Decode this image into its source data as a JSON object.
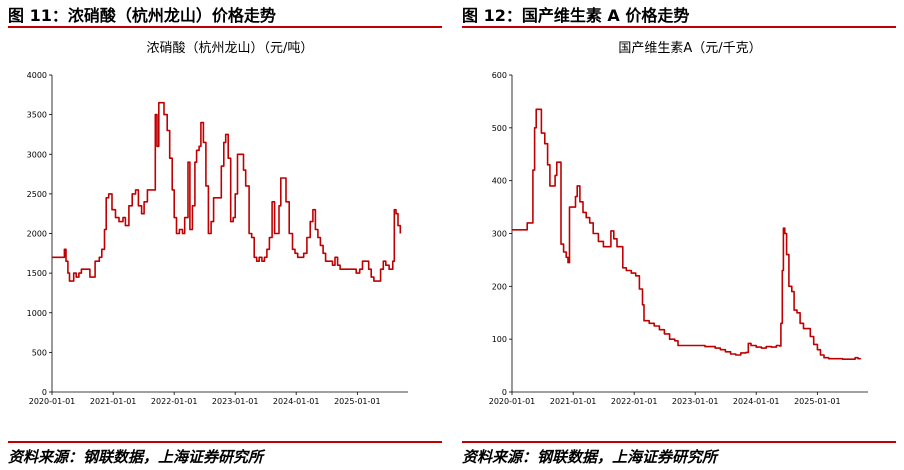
{
  "panels": [
    {
      "fig_title": "图 11：浓硝酸（杭州龙山）价格走势",
      "source": "资料来源：钢联数据，上海证券研究所"
    },
    {
      "fig_title": "图 12：国产维生素 A 价格走势",
      "source": "资料来源：钢联数据，上海证券研究所"
    }
  ],
  "chart_data": [
    {
      "type": "line",
      "title": "浓硝酸（杭州龙山）（元/吨）",
      "x_range": [
        "2020-01-01",
        "2025-10-31"
      ],
      "ylim": [
        0,
        4000
      ],
      "yticks": [
        "0",
        "500",
        "1000",
        "1500",
        "2000",
        "2500",
        "3000",
        "3500",
        "4000"
      ],
      "xticks": [
        "2020-01-01",
        "2021-01-01",
        "2022-01-01",
        "2023-01-01",
        "2024-01-01",
        "2025-01-01"
      ],
      "grid": false,
      "series": [
        {
          "color": "#c00000",
          "points": [
            [
              "2020-01-01",
              1700
            ],
            [
              "2020-03-10",
              1700
            ],
            [
              "2020-03-15",
              1800
            ],
            [
              "2020-03-25",
              1650
            ],
            [
              "2020-04-05",
              1500
            ],
            [
              "2020-04-15",
              1400
            ],
            [
              "2020-05-01",
              1400
            ],
            [
              "2020-05-10",
              1500
            ],
            [
              "2020-05-25",
              1450
            ],
            [
              "2020-06-10",
              1500
            ],
            [
              "2020-06-25",
              1550
            ],
            [
              "2020-08-05",
              1550
            ],
            [
              "2020-08-15",
              1450
            ],
            [
              "2020-09-01",
              1450
            ],
            [
              "2020-09-15",
              1650
            ],
            [
              "2020-10-10",
              1700
            ],
            [
              "2020-10-25",
              1800
            ],
            [
              "2020-11-10",
              2050
            ],
            [
              "2020-11-20",
              2450
            ],
            [
              "2020-12-05",
              2500
            ],
            [
              "2020-12-25",
              2300
            ],
            [
              "2021-01-15",
              2200
            ],
            [
              "2021-02-05",
              2150
            ],
            [
              "2021-03-01",
              2200
            ],
            [
              "2021-03-15",
              2100
            ],
            [
              "2021-04-05",
              2350
            ],
            [
              "2021-04-25",
              2500
            ],
            [
              "2021-05-15",
              2550
            ],
            [
              "2021-06-01",
              2350
            ],
            [
              "2021-06-20",
              2250
            ],
            [
              "2021-07-05",
              2400
            ],
            [
              "2021-07-25",
              2550
            ],
            [
              "2021-09-01",
              2550
            ],
            [
              "2021-09-10",
              3500
            ],
            [
              "2021-09-20",
              3100
            ],
            [
              "2021-10-01",
              3650
            ],
            [
              "2021-10-20",
              3650
            ],
            [
              "2021-11-01",
              3500
            ],
            [
              "2021-11-20",
              3300
            ],
            [
              "2021-12-05",
              2950
            ],
            [
              "2021-12-20",
              2550
            ],
            [
              "2022-01-01",
              2200
            ],
            [
              "2022-01-15",
              2000
            ],
            [
              "2022-02-01",
              2050
            ],
            [
              "2022-02-20",
              2000
            ],
            [
              "2022-03-05",
              2200
            ],
            [
              "2022-03-15",
              2200
            ],
            [
              "2022-03-25",
              2900
            ],
            [
              "2022-04-05",
              2050
            ],
            [
              "2022-04-20",
              2350
            ],
            [
              "2022-05-05",
              2900
            ],
            [
              "2022-05-15",
              3050
            ],
            [
              "2022-05-30",
              3100
            ],
            [
              "2022-06-10",
              3400
            ],
            [
              "2022-06-25",
              3150
            ],
            [
              "2022-07-10",
              2600
            ],
            [
              "2022-07-25",
              2000
            ],
            [
              "2022-08-10",
              2150
            ],
            [
              "2022-08-25",
              2450
            ],
            [
              "2022-10-01",
              2450
            ],
            [
              "2022-10-10",
              2850
            ],
            [
              "2022-10-25",
              3150
            ],
            [
              "2022-11-05",
              3250
            ],
            [
              "2022-11-20",
              2950
            ],
            [
              "2022-12-05",
              2150
            ],
            [
              "2022-12-20",
              2200
            ],
            [
              "2023-01-01",
              2500
            ],
            [
              "2023-01-15",
              3000
            ],
            [
              "2023-02-01",
              3000
            ],
            [
              "2023-02-20",
              2800
            ],
            [
              "2023-03-05",
              2600
            ],
            [
              "2023-03-25",
              2000
            ],
            [
              "2023-04-10",
              1950
            ],
            [
              "2023-04-25",
              1700
            ],
            [
              "2023-05-10",
              1650
            ],
            [
              "2023-05-25",
              1700
            ],
            [
              "2023-06-10",
              1650
            ],
            [
              "2023-06-25",
              1700
            ],
            [
              "2023-07-10",
              1800
            ],
            [
              "2023-07-25",
              1950
            ],
            [
              "2023-08-10",
              2400
            ],
            [
              "2023-08-25",
              2000
            ],
            [
              "2023-09-10",
              2000
            ],
            [
              "2023-09-20",
              2350
            ],
            [
              "2023-10-01",
              2700
            ],
            [
              "2023-10-15",
              2700
            ],
            [
              "2023-11-01",
              2400
            ],
            [
              "2023-11-20",
              2000
            ],
            [
              "2023-12-10",
              1800
            ],
            [
              "2023-12-25",
              1750
            ],
            [
              "2024-01-10",
              1700
            ],
            [
              "2024-01-25",
              1700
            ],
            [
              "2024-02-15",
              1750
            ],
            [
              "2024-03-05",
              1950
            ],
            [
              "2024-03-25",
              2150
            ],
            [
              "2024-04-10",
              2300
            ],
            [
              "2024-04-25",
              2050
            ],
            [
              "2024-05-10",
              1950
            ],
            [
              "2024-05-25",
              1850
            ],
            [
              "2024-06-10",
              1750
            ],
            [
              "2024-06-25",
              1650
            ],
            [
              "2024-07-20",
              1650
            ],
            [
              "2024-08-05",
              1600
            ],
            [
              "2024-08-20",
              1700
            ],
            [
              "2024-09-05",
              1600
            ],
            [
              "2024-09-20",
              1550
            ],
            [
              "2024-12-10",
              1550
            ],
            [
              "2024-12-25",
              1500
            ],
            [
              "2025-01-15",
              1550
            ],
            [
              "2025-02-01",
              1650
            ],
            [
              "2025-02-20",
              1650
            ],
            [
              "2025-03-10",
              1550
            ],
            [
              "2025-03-25",
              1450
            ],
            [
              "2025-04-10",
              1400
            ],
            [
              "2025-05-01",
              1400
            ],
            [
              "2025-05-20",
              1550
            ],
            [
              "2025-06-05",
              1650
            ],
            [
              "2025-06-20",
              1600
            ],
            [
              "2025-07-10",
              1550
            ],
            [
              "2025-08-01",
              1650
            ],
            [
              "2025-08-10",
              2300
            ],
            [
              "2025-08-20",
              2250
            ],
            [
              "2025-09-01",
              2100
            ],
            [
              "2025-09-15",
              2000
            ]
          ]
        }
      ]
    },
    {
      "type": "line",
      "title": "国产维生素A（元/千克）",
      "x_range": [
        "2020-01-01",
        "2025-10-31"
      ],
      "ylim": [
        0,
        600
      ],
      "yticks": [
        "0",
        "100",
        "200",
        "300",
        "400",
        "500",
        "600"
      ],
      "xticks": [
        "2020-01-01",
        "2021-01-01",
        "2022-01-01",
        "2023-01-01",
        "2024-01-01",
        "2025-01-01"
      ],
      "grid": false,
      "series": [
        {
          "color": "#c00000",
          "points": [
            [
              "2020-01-01",
              307
            ],
            [
              "2020-03-20",
              307
            ],
            [
              "2020-04-01",
              320
            ],
            [
              "2020-04-25",
              320
            ],
            [
              "2020-05-05",
              420
            ],
            [
              "2020-05-15",
              500
            ],
            [
              "2020-05-25",
              535
            ],
            [
              "2020-06-10",
              535
            ],
            [
              "2020-06-25",
              490
            ],
            [
              "2020-07-15",
              470
            ],
            [
              "2020-08-01",
              430
            ],
            [
              "2020-08-15",
              390
            ],
            [
              "2020-09-05",
              390
            ],
            [
              "2020-09-15",
              410
            ],
            [
              "2020-09-25",
              435
            ],
            [
              "2020-10-05",
              435
            ],
            [
              "2020-10-20",
              280
            ],
            [
              "2020-11-05",
              265
            ],
            [
              "2020-11-20",
              255
            ],
            [
              "2020-12-01",
              245
            ],
            [
              "2020-12-10",
              350
            ],
            [
              "2021-01-05",
              350
            ],
            [
              "2021-01-15",
              370
            ],
            [
              "2021-01-25",
              390
            ],
            [
              "2021-02-10",
              360
            ],
            [
              "2021-03-01",
              340
            ],
            [
              "2021-03-20",
              330
            ],
            [
              "2021-04-10",
              320
            ],
            [
              "2021-05-01",
              300
            ],
            [
              "2021-06-01",
              285
            ],
            [
              "2021-07-01",
              275
            ],
            [
              "2021-08-01",
              275
            ],
            [
              "2021-08-15",
              305
            ],
            [
              "2021-09-01",
              290
            ],
            [
              "2021-09-20",
              275
            ],
            [
              "2021-10-10",
              275
            ],
            [
              "2021-10-25",
              235
            ],
            [
              "2021-11-15",
              230
            ],
            [
              "2021-12-15",
              225
            ],
            [
              "2022-01-10",
              220
            ],
            [
              "2022-02-01",
              195
            ],
            [
              "2022-02-20",
              165
            ],
            [
              "2022-03-01",
              135
            ],
            [
              "2022-04-01",
              130
            ],
            [
              "2022-05-01",
              125
            ],
            [
              "2022-06-01",
              118
            ],
            [
              "2022-07-01",
              110
            ],
            [
              "2022-08-01",
              100
            ],
            [
              "2022-09-01",
              97
            ],
            [
              "2022-09-20",
              88
            ],
            [
              "2022-12-01",
              88
            ],
            [
              "2023-03-01",
              86
            ],
            [
              "2023-05-01",
              83
            ],
            [
              "2023-06-01",
              80
            ],
            [
              "2023-07-01",
              76
            ],
            [
              "2023-08-01",
              72
            ],
            [
              "2023-09-01",
              70
            ],
            [
              "2023-10-01",
              74
            ],
            [
              "2023-11-01",
              75
            ],
            [
              "2023-11-15",
              92
            ],
            [
              "2023-12-01",
              88
            ],
            [
              "2024-01-01",
              85
            ],
            [
              "2024-02-01",
              83
            ],
            [
              "2024-03-01",
              86
            ],
            [
              "2024-04-01",
              85
            ],
            [
              "2024-05-01",
              88
            ],
            [
              "2024-05-20",
              87
            ],
            [
              "2024-05-28",
              130
            ],
            [
              "2024-06-05",
              230
            ],
            [
              "2024-06-12",
              310
            ],
            [
              "2024-06-20",
              300
            ],
            [
              "2024-07-01",
              260
            ],
            [
              "2024-07-15",
              200
            ],
            [
              "2024-08-01",
              190
            ],
            [
              "2024-08-15",
              155
            ],
            [
              "2024-09-01",
              150
            ],
            [
              "2024-09-20",
              130
            ],
            [
              "2024-10-10",
              120
            ],
            [
              "2024-11-01",
              120
            ],
            [
              "2024-11-20",
              105
            ],
            [
              "2024-12-10",
              90
            ],
            [
              "2025-01-01",
              80
            ],
            [
              "2025-01-20",
              70
            ],
            [
              "2025-02-10",
              65
            ],
            [
              "2025-03-10",
              63
            ],
            [
              "2025-06-01",
              62
            ],
            [
              "2025-08-01",
              62
            ],
            [
              "2025-08-15",
              65
            ],
            [
              "2025-09-01",
              63
            ],
            [
              "2025-09-15",
              62
            ]
          ]
        }
      ]
    }
  ]
}
